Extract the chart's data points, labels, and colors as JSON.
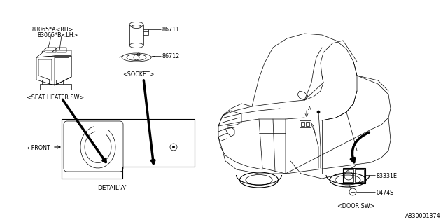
{
  "bg": "#ffffff",
  "lc": "#000000",
  "lt": 0.5,
  "lm": 0.8,
  "lk": 2.5,
  "fs": 5.8,
  "fn": 6.5,
  "fm": "DejaVu Sans",
  "labels": {
    "rh": "83065*A<RH>",
    "lh": "83065*B<LH>",
    "p86711": "86711",
    "p86712": "86712",
    "p83331E": "83331E",
    "p0474S": "0474S",
    "seat": "<SEAT HEATER SW>",
    "socket": "<SOCKET>",
    "detail": "DETAIL'A'",
    "door": "<DOOR SW>",
    "front": "←FRONT",
    "A": "A",
    "footer": "A830001374"
  }
}
